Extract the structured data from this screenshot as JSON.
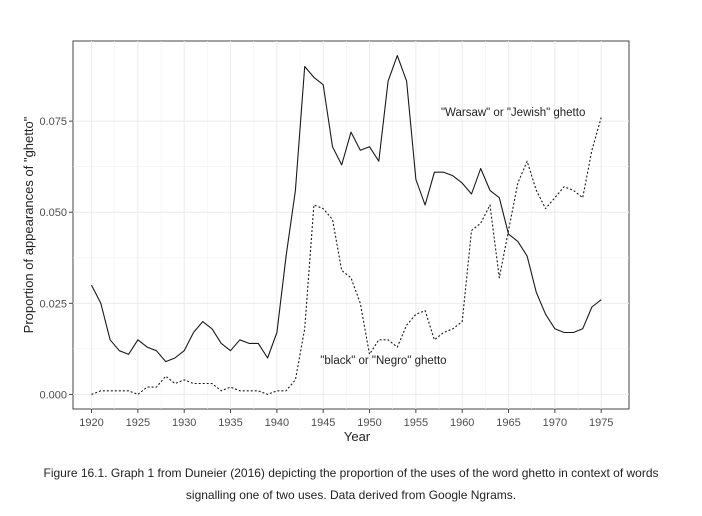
{
  "chart_data": {
    "type": "line",
    "xlabel": "Year",
    "ylabel": "Proportion of appearances of \"ghetto\"",
    "xlim": [
      1918,
      1978
    ],
    "ylim": [
      -0.004,
      0.097
    ],
    "x_ticks": [
      1920,
      1925,
      1930,
      1935,
      1940,
      1945,
      1950,
      1955,
      1960,
      1965,
      1970,
      1975
    ],
    "y_ticks": [
      0.0,
      0.025,
      0.05,
      0.075
    ],
    "y_tick_labels": [
      "0.000",
      "0.025",
      "0.050",
      "0.075"
    ],
    "grid": true,
    "x": [
      1920,
      1921,
      1922,
      1923,
      1924,
      1925,
      1926,
      1927,
      1928,
      1929,
      1930,
      1931,
      1932,
      1933,
      1934,
      1935,
      1936,
      1937,
      1938,
      1939,
      1940,
      1941,
      1942,
      1943,
      1944,
      1945,
      1946,
      1947,
      1948,
      1949,
      1950,
      1951,
      1952,
      1953,
      1954,
      1955,
      1956,
      1957,
      1958,
      1959,
      1960,
      1961,
      1962,
      1963,
      1964,
      1965,
      1966,
      1967,
      1968,
      1969,
      1970,
      1971,
      1972,
      1973,
      1974,
      1975
    ],
    "series": [
      {
        "name": "\"Warsaw\" or \"Jewish\" ghetto",
        "style": "solid",
        "color": "#1a1a1a",
        "values": [
          0.03,
          0.025,
          0.015,
          0.012,
          0.011,
          0.015,
          0.013,
          0.012,
          0.009,
          0.01,
          0.012,
          0.017,
          0.02,
          0.018,
          0.014,
          0.012,
          0.015,
          0.014,
          0.014,
          0.01,
          0.017,
          0.038,
          0.056,
          0.09,
          0.087,
          0.085,
          0.068,
          0.063,
          0.072,
          0.067,
          0.068,
          0.064,
          0.086,
          0.093,
          0.086,
          0.059,
          0.052,
          0.061,
          0.061,
          0.06,
          0.058,
          0.055,
          0.062,
          0.056,
          0.054,
          0.044,
          0.042,
          0.038,
          0.028,
          0.022,
          0.018,
          0.017,
          0.017,
          0.018,
          0.024,
          0.026
        ]
      },
      {
        "name": "\"black\" or \"Negro\" ghetto",
        "style": "dotted",
        "color": "#1a1a1a",
        "values": [
          0.0,
          0.001,
          0.001,
          0.001,
          0.001,
          0.0,
          0.002,
          0.002,
          0.005,
          0.003,
          0.004,
          0.003,
          0.003,
          0.003,
          0.001,
          0.002,
          0.001,
          0.001,
          0.001,
          0.0,
          0.001,
          0.001,
          0.004,
          0.018,
          0.052,
          0.051,
          0.048,
          0.034,
          0.032,
          0.025,
          0.011,
          0.015,
          0.015,
          0.013,
          0.019,
          0.022,
          0.023,
          0.015,
          0.017,
          0.018,
          0.02,
          0.045,
          0.047,
          0.052,
          0.032,
          0.045,
          0.058,
          0.064,
          0.056,
          0.051,
          0.054,
          0.057,
          0.056,
          0.054,
          0.067,
          0.076
        ]
      }
    ],
    "annotations": [
      {
        "text": "\"Warsaw\" or \"Jewish\" ghetto",
        "x": 1965.5,
        "y": 0.0775
      },
      {
        "text": "\"black\" or \"Negro\" ghetto",
        "x": 1951.5,
        "y": 0.0095
      }
    ]
  },
  "caption": "Figure 16.1. Graph 1 from Duneier (2016) depicting the proportion of the uses of the word ghetto in context of words signalling one of two uses. Data derived from Google Ngrams."
}
